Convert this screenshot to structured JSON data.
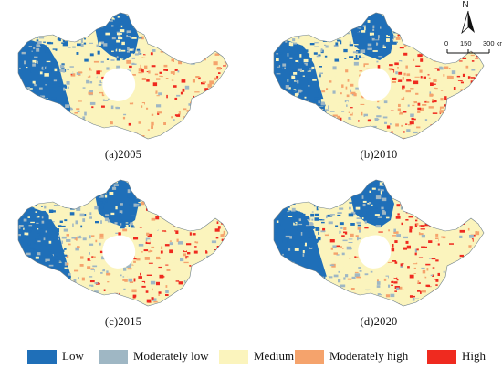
{
  "panels": [
    {
      "id": "a",
      "caption": "(a)2005"
    },
    {
      "id": "b",
      "caption": "(b)2010"
    },
    {
      "id": "c",
      "caption": "(c)2015"
    },
    {
      "id": "d",
      "caption": "(d)2020"
    }
  ],
  "north_arrow": {
    "letter": "N"
  },
  "scale_bar": {
    "labels": [
      "0",
      "150",
      "300 km"
    ]
  },
  "legend": [
    {
      "label": "Low",
      "color": "#1f6fb8"
    },
    {
      "label": "Moderately low",
      "color": "#9fb7c4"
    },
    {
      "label": "Medium",
      "color": "#fbf4bd"
    },
    {
      "label": "Moderately high",
      "color": "#f5a36c"
    },
    {
      "label": "High",
      "color": "#ef2a1f"
    }
  ]
}
